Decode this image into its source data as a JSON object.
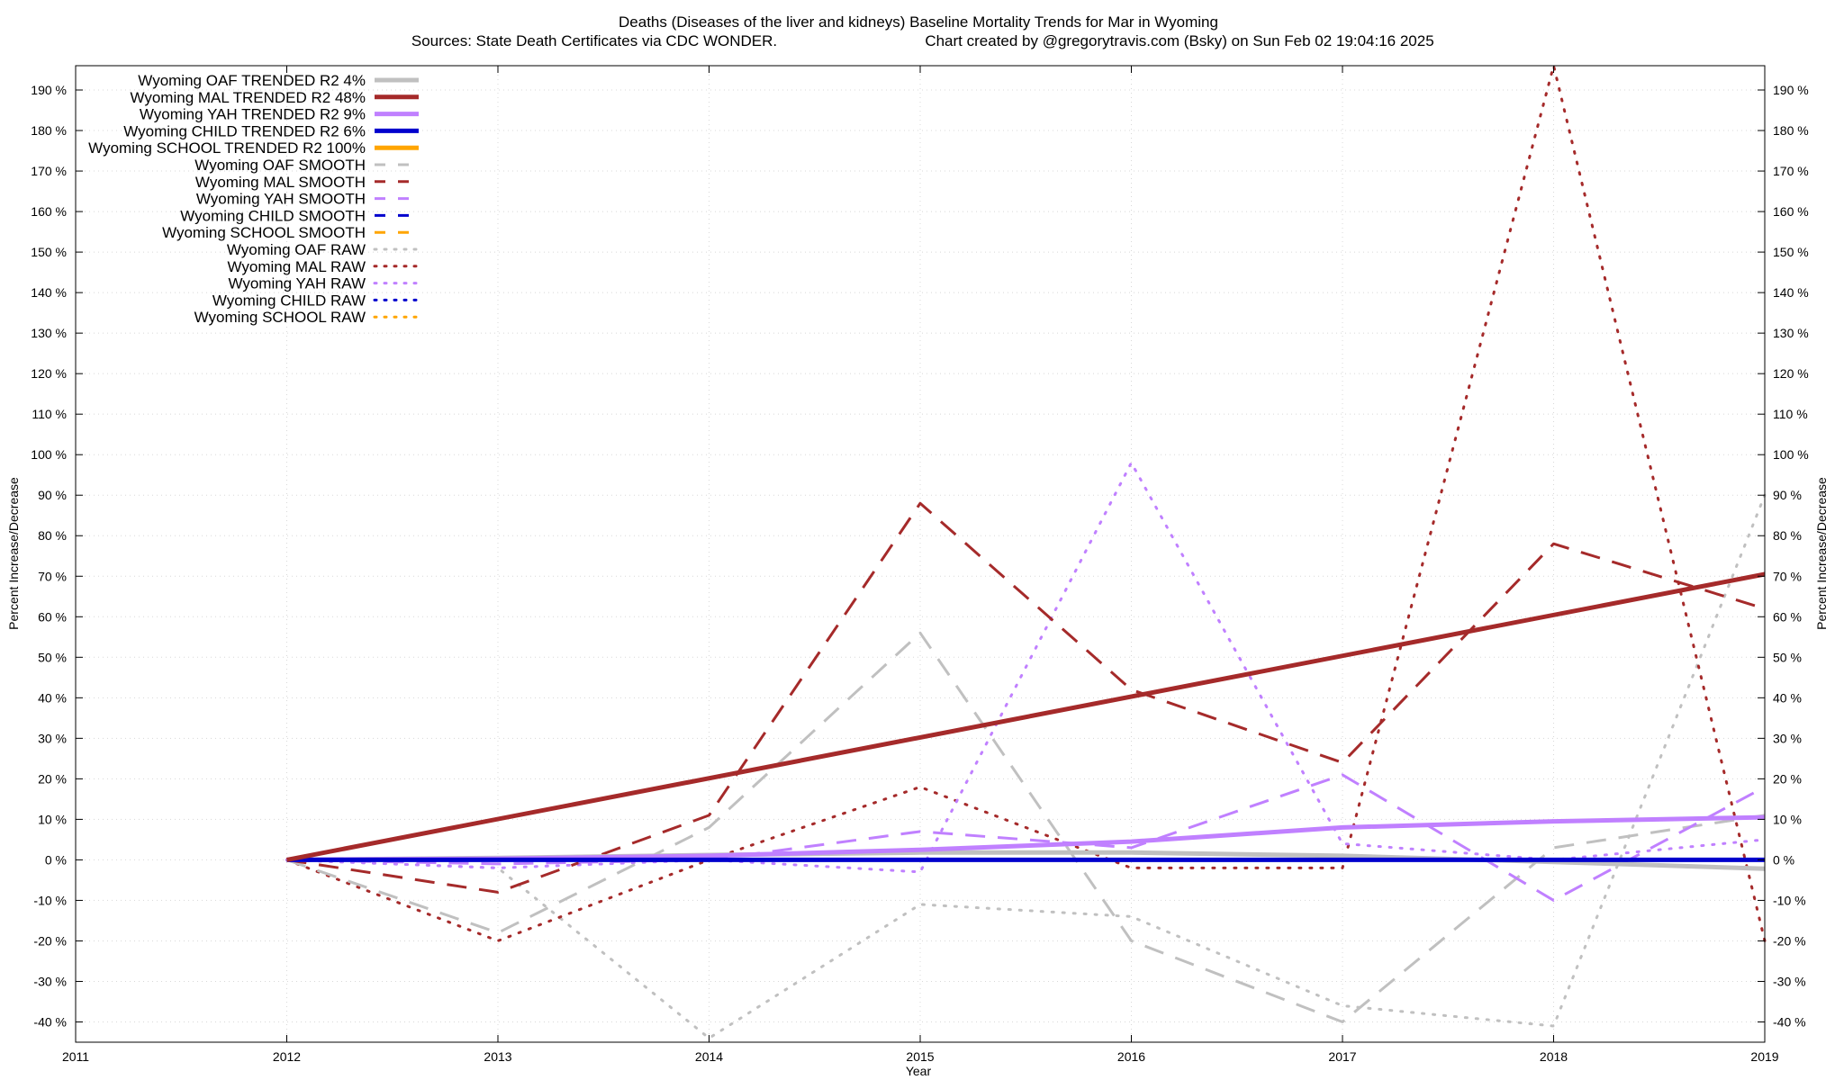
{
  "chart_data": {
    "type": "line",
    "title": "Deaths (Diseases of the liver and kidneys)  Baseline Mortality Trends for Mar in Wyoming",
    "subtitle_left": "Sources: State Death Certificates via CDC WONDER.",
    "subtitle_right": "Chart created by @gregorytravis.com (Bsky) on Sun Feb 02 19:04:16 2025",
    "xlabel": "Year",
    "ylabel": "Percent Increase/Decrease",
    "xlim": [
      2011,
      2019
    ],
    "ylim": [
      -45,
      196
    ],
    "x_ticks": [
      2011,
      2012,
      2013,
      2014,
      2015,
      2016,
      2017,
      2018,
      2019
    ],
    "y_ticks": [
      -40,
      -30,
      -20,
      -10,
      0,
      10,
      20,
      30,
      40,
      50,
      60,
      70,
      80,
      90,
      100,
      110,
      120,
      130,
      140,
      150,
      160,
      170,
      180,
      190
    ],
    "y_tick_suffix": " %",
    "grid": true,
    "legend_position": "top-left",
    "series": [
      {
        "name": "Wyoming OAF TRENDED R2   4%",
        "style": "solid",
        "color": "#c0c0c0",
        "width": 5,
        "x": [
          2012,
          2013,
          2014,
          2015,
          2016,
          2017,
          2018,
          2019
        ],
        "y": [
          0,
          0.5,
          1.2,
          1.8,
          1.8,
          1.0,
          -0.5,
          -2.2
        ]
      },
      {
        "name": "Wyoming MAL TRENDED R2  48%",
        "style": "solid",
        "color": "#a52a2a",
        "width": 5,
        "x": [
          2012,
          2019
        ],
        "y": [
          0,
          70.5
        ]
      },
      {
        "name": "Wyoming YAH TRENDED R2   9%",
        "style": "solid",
        "color": "#c080ff",
        "width": 5,
        "x": [
          2012,
          2013,
          2014,
          2015,
          2016,
          2017,
          2018,
          2019
        ],
        "y": [
          0,
          0.3,
          1.0,
          2.5,
          4.5,
          8.0,
          9.5,
          10.5
        ]
      },
      {
        "name": "Wyoming CHILD TRENDED R2   6%",
        "style": "solid",
        "color": "#0000cd",
        "width": 5,
        "x": [
          2012,
          2019
        ],
        "y": [
          0,
          0
        ]
      },
      {
        "name": "Wyoming SCHOOL TRENDED R2 100%",
        "style": "solid",
        "color": "#ffa500",
        "width": 5,
        "x": [],
        "y": []
      },
      {
        "name": "Wyoming OAF SMOOTH",
        "style": "dashed",
        "color": "#c0c0c0",
        "width": 3,
        "x": [
          2012,
          2013,
          2014,
          2015,
          2016,
          2017,
          2018,
          2019
        ],
        "y": [
          0,
          -18,
          8,
          56,
          -20,
          -40,
          3,
          11
        ]
      },
      {
        "name": "Wyoming MAL SMOOTH",
        "style": "dashed",
        "color": "#a52a2a",
        "width": 3,
        "x": [
          2012,
          2013,
          2014,
          2015,
          2016,
          2017,
          2018,
          2019
        ],
        "y": [
          0,
          -8,
          11,
          88,
          42,
          24,
          78,
          62
        ]
      },
      {
        "name": "Wyoming YAH SMOOTH",
        "style": "dashed",
        "color": "#c080ff",
        "width": 3,
        "x": [
          2012,
          2013,
          2014,
          2015,
          2016,
          2017,
          2018,
          2019
        ],
        "y": [
          0,
          -1,
          0,
          7,
          3,
          21,
          -10,
          18
        ]
      },
      {
        "name": "Wyoming CHILD SMOOTH",
        "style": "dashed",
        "color": "#0000cd",
        "width": 3,
        "x": [],
        "y": []
      },
      {
        "name": "Wyoming SCHOOL SMOOTH",
        "style": "dashed",
        "color": "#ffa500",
        "width": 3,
        "x": [],
        "y": []
      },
      {
        "name": "Wyoming OAF RAW",
        "style": "dotted",
        "color": "#c0c0c0",
        "width": 3,
        "x": [
          2012,
          2013,
          2014,
          2015,
          2016,
          2017,
          2018,
          2019
        ],
        "y": [
          0,
          -2,
          -44,
          -11,
          -14,
          -36,
          -41,
          90
        ]
      },
      {
        "name": "Wyoming MAL RAW",
        "style": "dotted",
        "color": "#a52a2a",
        "width": 3,
        "x": [
          2012,
          2013,
          2014,
          2015,
          2016,
          2017,
          2018,
          2019
        ],
        "y": [
          0,
          -20,
          0,
          18,
          -2,
          -2,
          196,
          -20
        ]
      },
      {
        "name": "Wyoming YAH RAW",
        "style": "dotted",
        "color": "#c080ff",
        "width": 3,
        "x": [
          2012,
          2013,
          2014,
          2015,
          2016,
          2017,
          2018,
          2019
        ],
        "y": [
          0,
          -2,
          0,
          -3,
          98,
          4,
          0,
          5
        ]
      },
      {
        "name": "Wyoming CHILD RAW",
        "style": "dotted",
        "color": "#0000cd",
        "width": 3,
        "x": [],
        "y": []
      },
      {
        "name": "Wyoming SCHOOL RAW",
        "style": "dotted",
        "color": "#ffa500",
        "width": 3,
        "x": [],
        "y": []
      }
    ]
  }
}
